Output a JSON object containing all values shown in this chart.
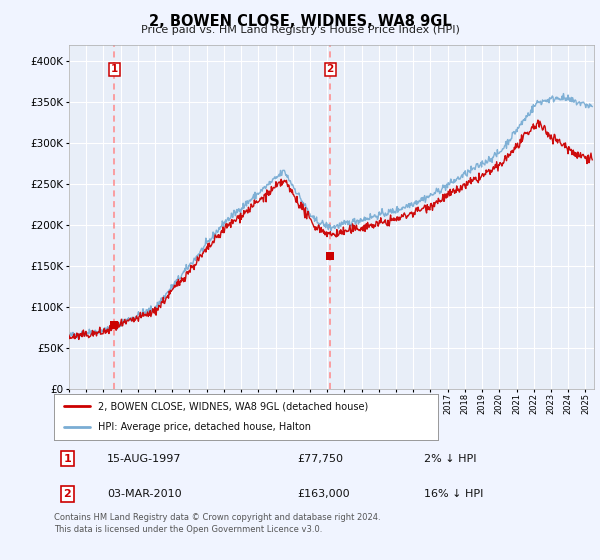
{
  "title": "2, BOWEN CLOSE, WIDNES, WA8 9GL",
  "subtitle": "Price paid vs. HM Land Registry's House Price Index (HPI)",
  "background_color": "#f0f4ff",
  "plot_bg_color": "#e8eef8",
  "grid_color": "#ffffff",
  "sale1_label": "15-AUG-1997",
  "sale1_price": 77750,
  "sale1_pct": "2% ↓ HPI",
  "sale2_label": "03-MAR-2010",
  "sale2_price": 163000,
  "sale2_pct": "16% ↓ HPI",
  "sale1_x": 1997.625,
  "sale2_x": 2010.167,
  "legend_line1": "2, BOWEN CLOSE, WIDNES, WA8 9GL (detached house)",
  "legend_line2": "HPI: Average price, detached house, Halton",
  "footnote1": "Contains HM Land Registry data © Crown copyright and database right 2024.",
  "footnote2": "This data is licensed under the Open Government Licence v3.0.",
  "price_line_color": "#cc0000",
  "hpi_line_color": "#7aadd4",
  "dashed_line_color": "#ff8888",
  "marker_color": "#cc0000",
  "ylim_min": 0,
  "ylim_max": 420000,
  "xmin_year": 1995.0,
  "xmax_year": 2025.5,
  "yticks": [
    0,
    50000,
    100000,
    150000,
    200000,
    250000,
    300000,
    350000,
    400000
  ],
  "ytick_labels": [
    "£0",
    "£50K",
    "£100K",
    "£150K",
    "£200K",
    "£250K",
    "£300K",
    "£350K",
    "£400K"
  ],
  "xtick_years": [
    1995,
    1996,
    1997,
    1998,
    1999,
    2000,
    2001,
    2002,
    2003,
    2004,
    2005,
    2006,
    2007,
    2008,
    2009,
    2010,
    2011,
    2012,
    2013,
    2014,
    2015,
    2016,
    2017,
    2018,
    2019,
    2020,
    2021,
    2022,
    2023,
    2024,
    2025
  ]
}
